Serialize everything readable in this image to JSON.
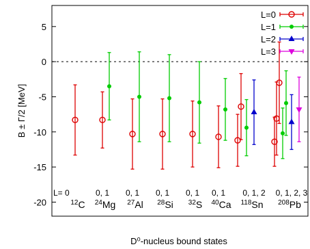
{
  "chart_data": {
    "type": "scatter",
    "xlabel": "D⁰-nucleus bound states",
    "ylabel": "B ± Γ/2  [MeV]",
    "ylim": [
      -22,
      8
    ],
    "yticks": [
      5,
      0,
      -5,
      -10,
      -15,
      -20
    ],
    "reference_line": {
      "y": 0,
      "style": "dotted"
    },
    "grid": false,
    "legend_position": "top-right",
    "series": [
      {
        "name": "L=0",
        "color": "#dd0000",
        "marker": "open-circle"
      },
      {
        "name": "L=1",
        "color": "#00cc00",
        "marker": "filled-circle"
      },
      {
        "name": "L=2",
        "color": "#0000cc",
        "marker": "filled-triangle-up"
      },
      {
        "name": "L=3",
        "color": "#dd00dd",
        "marker": "filled-triangle-down"
      }
    ],
    "groups": [
      {
        "nucleus": "C",
        "mass": "12",
        "l_label": "L=  0"
      },
      {
        "nucleus": "Mg",
        "mass": "24",
        "l_label": "0, 1"
      },
      {
        "nucleus": "Al",
        "mass": "27",
        "l_label": "0, 1"
      },
      {
        "nucleus": "Si",
        "mass": "28",
        "l_label": "0, 1"
      },
      {
        "nucleus": "S",
        "mass": "32",
        "l_label": "0, 1"
      },
      {
        "nucleus": "Ca",
        "mass": "40",
        "l_label": "0, 1"
      },
      {
        "nucleus": "Sn",
        "mass": "118",
        "l_label": "0, 1, 2"
      },
      {
        "nucleus": "Pb",
        "mass": "208",
        "l_label": "0, 1, 2, 3"
      }
    ],
    "points": [
      {
        "group": 0,
        "L": 0,
        "B": -8.3,
        "half_width": 5.0
      },
      {
        "group": 1,
        "L": 0,
        "B": -8.3,
        "half_width": 4.0
      },
      {
        "group": 1,
        "L": 1,
        "B": -3.5,
        "half_width": 4.8
      },
      {
        "group": 2,
        "L": 0,
        "B": -10.3,
        "half_width": 5.0
      },
      {
        "group": 2,
        "L": 1,
        "B": -5.0,
        "half_width": 6.4
      },
      {
        "group": 3,
        "L": 0,
        "B": -10.3,
        "half_width": 5.0
      },
      {
        "group": 3,
        "L": 1,
        "B": -5.2,
        "half_width": 6.2
      },
      {
        "group": 4,
        "L": 0,
        "B": -10.3,
        "half_width": 4.7
      },
      {
        "group": 4,
        "L": 1,
        "B": -5.8,
        "half_width": 5.8
      },
      {
        "group": 5,
        "L": 0,
        "B": -10.7,
        "half_width": 4.4
      },
      {
        "group": 5,
        "L": 1,
        "B": -6.8,
        "half_width": 4.4
      },
      {
        "group": 6,
        "L": 0,
        "B": -11.2,
        "half_width": 3.7
      },
      {
        "group": 6,
        "L": 0,
        "B": -6.4,
        "half_width": 4.7
      },
      {
        "group": 6,
        "L": 1,
        "B": -9.4,
        "half_width": 4.0
      },
      {
        "group": 6,
        "L": 2,
        "B": -7.2,
        "half_width": 4.6
      },
      {
        "group": 7,
        "L": 0,
        "B": -11.4,
        "half_width": 3.5
      },
      {
        "group": 7,
        "L": 0,
        "B": -8.1,
        "half_width": 5.2
      },
      {
        "group": 7,
        "L": 0,
        "B": -3.0,
        "half_width": 5.8
      },
      {
        "group": 7,
        "L": 1,
        "B": -10.2,
        "half_width": 3.6
      },
      {
        "group": 7,
        "L": 1,
        "B": -5.9,
        "half_width": 4.6
      },
      {
        "group": 7,
        "L": 2,
        "B": -8.6,
        "half_width": 3.9
      },
      {
        "group": 7,
        "L": 3,
        "B": -6.8,
        "half_width": 4.6
      }
    ]
  }
}
